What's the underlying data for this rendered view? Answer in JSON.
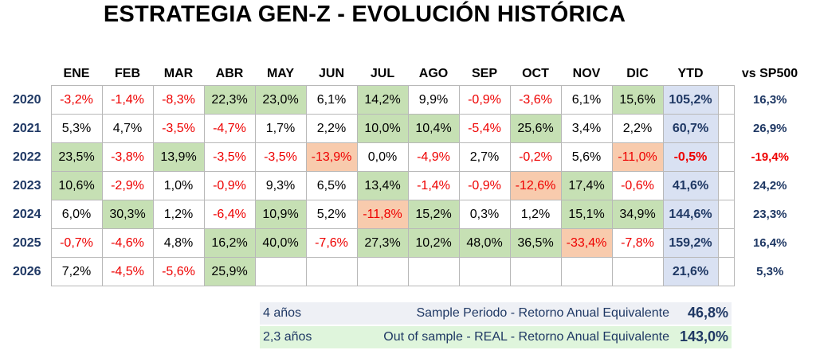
{
  "title": "ESTRATEGIA GEN-Z -  EVOLUCIÓN HISTÓRICA",
  "headers": {
    "months": [
      "ENE",
      "FEB",
      "MAR",
      "ABR",
      "MAY",
      "JUN",
      "JUL",
      "AGO",
      "SEP",
      "OCT",
      "NOV",
      "DIC"
    ],
    "ytd": "YTD",
    "vs": "vs SP500"
  },
  "rows": [
    {
      "year": "2020",
      "months": [
        "-3,2%",
        "-1,4%",
        "-8,3%",
        "22,3%",
        "23,0%",
        "6,1%",
        "14,2%",
        "9,9%",
        "-0,9%",
        "-3,6%",
        "6,1%",
        "15,6%"
      ],
      "ytd": "105,2%",
      "vs": "16,3%"
    },
    {
      "year": "2021",
      "months": [
        "5,3%",
        "4,7%",
        "-3,5%",
        "-4,7%",
        "1,7%",
        "2,2%",
        "10,0%",
        "10,4%",
        "-5,4%",
        "25,6%",
        "3,4%",
        "2,2%"
      ],
      "ytd": "60,7%",
      "vs": "26,9%"
    },
    {
      "year": "2022",
      "months": [
        "23,5%",
        "-3,8%",
        "13,9%",
        "-3,5%",
        "-3,5%",
        "-13,9%",
        "0,0%",
        "-4,9%",
        "2,7%",
        "-0,2%",
        "5,6%",
        "-11,0%"
      ],
      "ytd": "-0,5%",
      "vs": "-19,4%"
    },
    {
      "year": "2023",
      "months": [
        "10,6%",
        "-2,9%",
        "1,0%",
        "-0,9%",
        "9,3%",
        "6,5%",
        "13,4%",
        "-1,4%",
        "-0,9%",
        "-12,6%",
        "17,4%",
        "-0,6%"
      ],
      "ytd": "41,6%",
      "vs": "24,2%"
    },
    {
      "year": "2024",
      "months": [
        "6,0%",
        "30,3%",
        "1,2%",
        "-6,4%",
        "10,9%",
        "5,2%",
        "-11,8%",
        "15,2%",
        "0,3%",
        "1,2%",
        "15,1%",
        "34,9%"
      ],
      "ytd": "144,6%",
      "vs": "23,3%"
    },
    {
      "year": "2025",
      "months": [
        "-0,7%",
        "-4,6%",
        "4,8%",
        "16,2%",
        "40,0%",
        "-7,6%",
        "27,3%",
        "10,2%",
        "48,0%",
        "36,5%",
        "-33,4%",
        "-7,8%"
      ],
      "ytd": "159,2%",
      "vs": "16,4%"
    },
    {
      "year": "2026",
      "months": [
        "7,2%",
        "-4,5%",
        "-5,6%",
        "25,9%",
        "",
        "",
        "",
        "",
        "",
        "",
        "",
        ""
      ],
      "ytd": "21,6%",
      "vs": "5,3%"
    }
  ],
  "summary": [
    {
      "years": "4 años",
      "label": "Sample Periodo - Retorno Anual Equivalente",
      "value": "46,8%"
    },
    {
      "years": "2,3 años",
      "label": "Out of sample - REAL - Retorno Anual Equivalente",
      "value": "143,0%"
    }
  ],
  "colors": {
    "high": "#c6e0b4",
    "low": "#f8cbad",
    "ytd": "#d9e1f2",
    "negative": "#ee0000",
    "navy": "#1f3864"
  }
}
